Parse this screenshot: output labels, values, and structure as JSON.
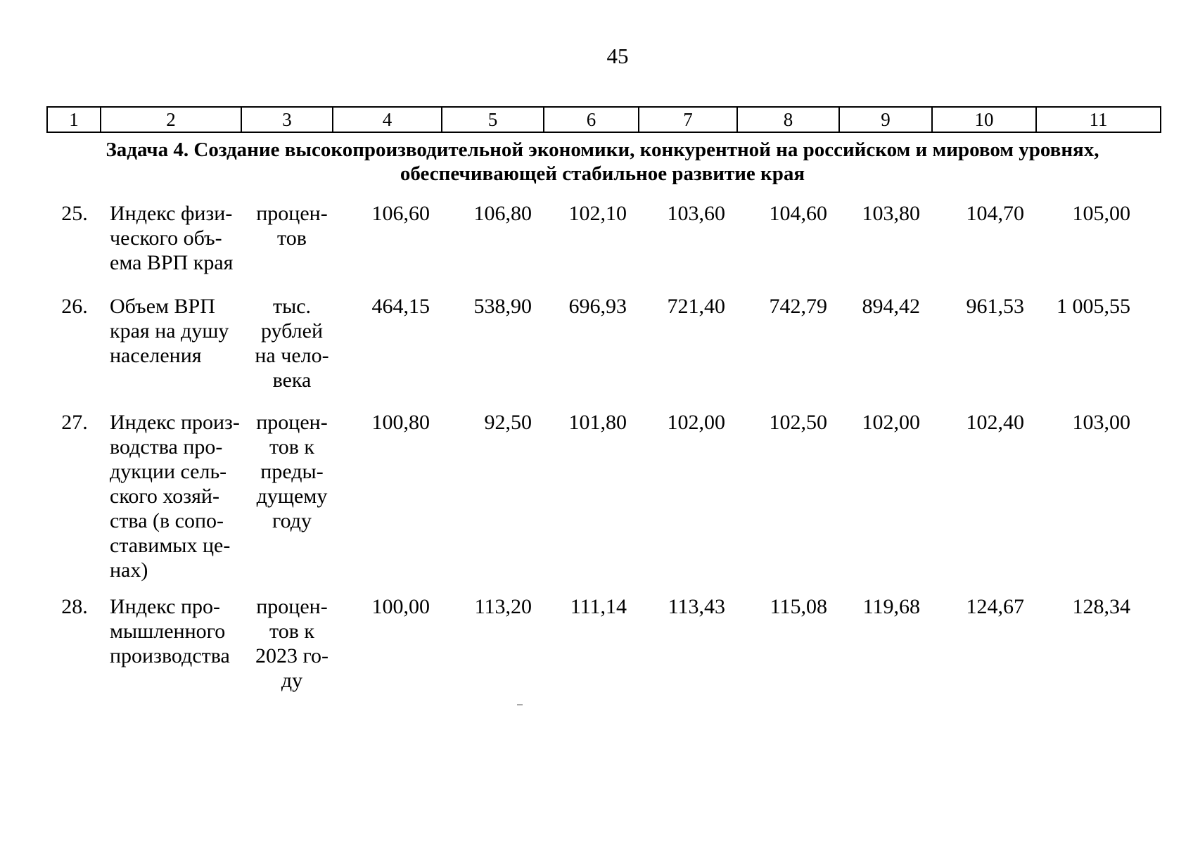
{
  "page": {
    "number": "45"
  },
  "table": {
    "header_numbers": [
      "1",
      "2",
      "3",
      "4",
      "5",
      "6",
      "7",
      "8",
      "9",
      "10",
      "11"
    ],
    "section_title": {
      "line1": "Задача 4. Создание высокопроизводительной экономики, конкурентной на российском и мировом уровнях,",
      "line2": "обеспечивающей стабильное развитие края"
    },
    "rows": [
      {
        "num": "25.",
        "name_lines": [
          "Индекс физи-",
          "ческого объ-",
          "ема ВРП края"
        ],
        "unit_lines": [
          "процен-",
          "тов"
        ],
        "values": [
          "106,60",
          "106,80",
          "102,10",
          "103,60",
          "104,60",
          "103,80",
          "104,70",
          "105,00"
        ]
      },
      {
        "num": "26.",
        "name_lines": [
          "Объем ВРП",
          "края на душу",
          "населения"
        ],
        "unit_lines": [
          "тыс.",
          "рублей",
          "на чело-",
          "века"
        ],
        "values": [
          "464,15",
          "538,90",
          "696,93",
          "721,40",
          "742,79",
          "894,42",
          "961,53",
          "1 005,55"
        ]
      },
      {
        "num": "27.",
        "name_lines": [
          "Индекс произ-",
          "водства про-",
          "дукции сель-",
          "ского хозяй-",
          "ства (в сопо-",
          "ставимых це-",
          "нах)"
        ],
        "unit_lines": [
          "процен-",
          "тов к",
          "преды-",
          "дущему",
          "году"
        ],
        "values": [
          "100,80",
          "92,50",
          "101,80",
          "102,00",
          "102,50",
          "102,00",
          "102,40",
          "103,00"
        ]
      },
      {
        "num": "28.",
        "name_lines": [
          "Индекс про-",
          "мышленного",
          "производства"
        ],
        "unit_lines": [
          "процен-",
          "тов к",
          "2023 го-",
          "ду"
        ],
        "values": [
          "100,00",
          "113,20",
          "111,14",
          "113,43",
          "115,08",
          "119,68",
          "124,67",
          "128,34"
        ]
      }
    ]
  }
}
